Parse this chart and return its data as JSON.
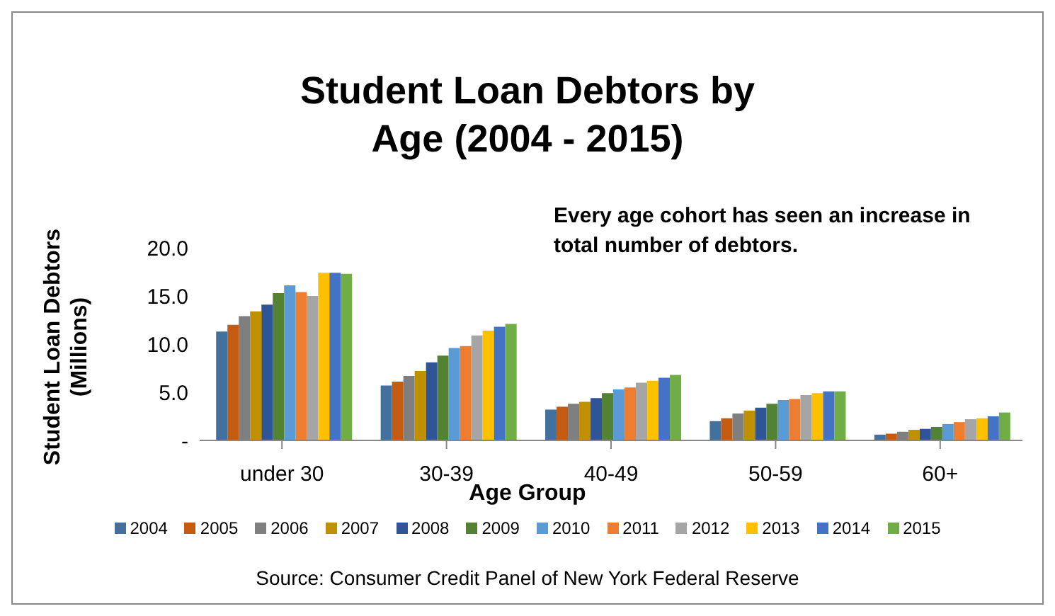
{
  "chart_data": {
    "type": "bar",
    "title": "Student Loan Debtors by Age (2004 - 2015)",
    "xlabel": "Age Group",
    "ylabel": "Student Loan Debtors (Millions)",
    "categories": [
      "under 30",
      "30-39",
      "40-49",
      "50-59",
      "60+"
    ],
    "series": [
      {
        "name": "2004",
        "color": "#41719c",
        "values": [
          11.3,
          5.7,
          3.2,
          2.0,
          0.6
        ]
      },
      {
        "name": "2005",
        "color": "#c55a11",
        "values": [
          12.0,
          6.1,
          3.5,
          2.3,
          0.7
        ]
      },
      {
        "name": "2006",
        "color": "#7f7f7f",
        "values": [
          12.9,
          6.7,
          3.8,
          2.8,
          0.9
        ]
      },
      {
        "name": "2007",
        "color": "#bf9000",
        "values": [
          13.4,
          7.2,
          4.0,
          3.1,
          1.1
        ]
      },
      {
        "name": "2008",
        "color": "#2f5597",
        "values": [
          14.1,
          8.1,
          4.4,
          3.4,
          1.2
        ]
      },
      {
        "name": "2009",
        "color": "#548235",
        "values": [
          15.3,
          8.8,
          4.9,
          3.8,
          1.4
        ]
      },
      {
        "name": "2010",
        "color": "#5b9bd5",
        "values": [
          16.1,
          9.6,
          5.3,
          4.2,
          1.7
        ]
      },
      {
        "name": "2011",
        "color": "#ed7d31",
        "values": [
          15.4,
          9.8,
          5.5,
          4.3,
          1.9
        ]
      },
      {
        "name": "2012",
        "color": "#a5a5a5",
        "values": [
          15.0,
          10.9,
          6.0,
          4.7,
          2.2
        ]
      },
      {
        "name": "2013",
        "color": "#ffc000",
        "values": [
          17.4,
          11.4,
          6.2,
          4.9,
          2.3
        ]
      },
      {
        "name": "2014",
        "color": "#4472c4",
        "values": [
          17.4,
          11.8,
          6.5,
          5.1,
          2.5
        ]
      },
      {
        "name": "2015",
        "color": "#70ad47",
        "values": [
          17.3,
          12.1,
          6.8,
          5.1,
          2.9
        ]
      }
    ],
    "ylim": [
      0,
      20
    ],
    "yticks": [
      {
        "value": 0,
        "label": "-"
      },
      {
        "value": 5,
        "label": "5.0"
      },
      {
        "value": 10,
        "label": "10.0"
      },
      {
        "value": 15,
        "label": "15.0"
      },
      {
        "value": 20,
        "label": "20.0"
      }
    ],
    "grid": false,
    "legend": "bottom",
    "annotations": [
      "Every age cohort has seen an increase in total number of debtors.",
      "Source: Consumer Credit Panel of New York Federal Reserve"
    ]
  }
}
